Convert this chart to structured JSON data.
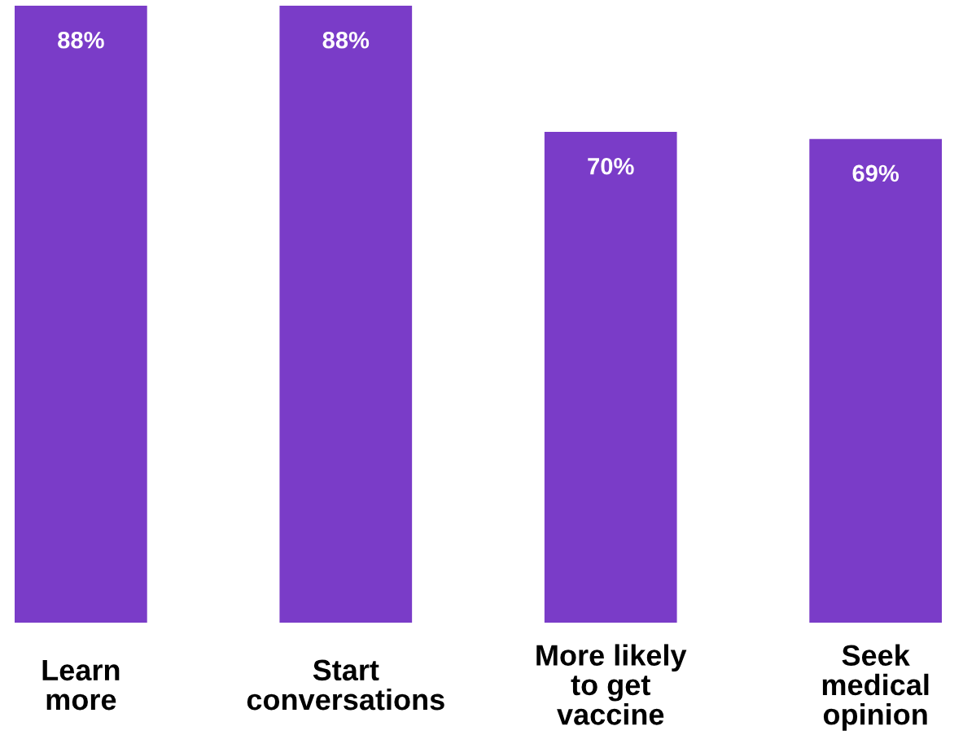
{
  "chart_data": {
    "type": "bar",
    "categories": [
      "Learn\nmore",
      "Start\nconversations",
      "More likely\nto get\nvaccine",
      "Seek\nmedical\nopinion"
    ],
    "values": [
      88,
      88,
      70,
      69
    ],
    "value_labels": [
      "88%",
      "88%",
      "70%",
      "69%"
    ],
    "color": "#7a3cc8"
  }
}
